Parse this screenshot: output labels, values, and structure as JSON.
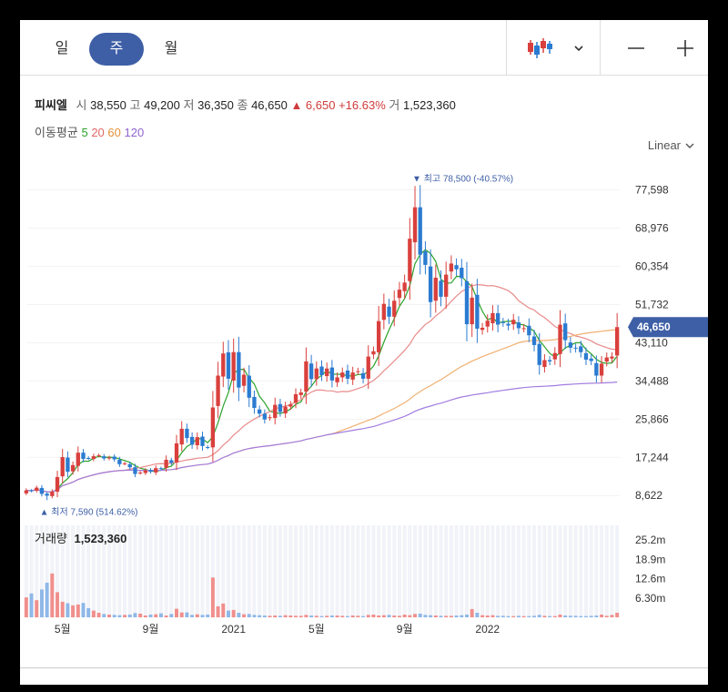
{
  "tabs": [
    {
      "label": "일",
      "active": false
    },
    {
      "label": "주",
      "active": true
    },
    {
      "label": "월",
      "active": false
    }
  ],
  "toolbar": {
    "chart_type_icon": "candlestick-icon",
    "dropdown_icon": "chevron-down-icon",
    "zoom_out_icon": "minus-icon",
    "zoom_in_icon": "plus-icon"
  },
  "stock": {
    "name": "피씨엘",
    "open_label": "시",
    "open": "38,550",
    "high_label": "고",
    "high": "49,200",
    "low_label": "저",
    "low": "36,350",
    "close_label": "종",
    "close": "46,650",
    "change": "▲ 6,650",
    "change_pct": "+16.63%",
    "volume_label": "거",
    "volume": "1,523,360"
  },
  "ma": {
    "label": "이동평균",
    "periods": [
      {
        "label": "5",
        "color": "#2aa22a"
      },
      {
        "label": "20",
        "color": "#e06666"
      },
      {
        "label": "60",
        "color": "#e69138"
      },
      {
        "label": "120",
        "color": "#8e63ce"
      }
    ]
  },
  "scale_label": "Linear",
  "colors": {
    "up": "#d9403d",
    "down": "#2b7bd1",
    "accent": "#3e5fa6"
  },
  "chart_data": {
    "type": "candlestick",
    "y_ticks": [
      "77,598",
      "68,976",
      "60,354",
      "51,732",
      "43,110",
      "34,488",
      "25,866",
      "17,244",
      "8,622"
    ],
    "y_tick_values": [
      77598,
      68976,
      60354,
      51732,
      43110,
      34488,
      25866,
      17244,
      8622
    ],
    "x_ticks": [
      "5월",
      "9월",
      "2021",
      "5월",
      "9월",
      "2022"
    ],
    "x_tick_weeks": [
      7,
      24,
      40,
      56,
      73,
      89
    ],
    "last_price_label": "46,650",
    "high_marker": "▼ 최고 78,500 (-40.57%)",
    "low_marker": "▲ 최저 7,590 (514.62%)",
    "volume_label": "거래량",
    "volume_value": "1,523,360",
    "volume_ticks": [
      "25.2m",
      "18.9m",
      "12.6m",
      "6.30m"
    ],
    "volume_tick_values": [
      25.2,
      18.9,
      12.6,
      6.3
    ],
    "closes": [
      9800,
      9600,
      10400,
      9000,
      8600,
      9500,
      12800,
      17300,
      14000,
      15500,
      18300,
      16900,
      17000,
      17500,
      17700,
      17000,
      17200,
      16800,
      15700,
      15900,
      15000,
      13500,
      13800,
      14300,
      14000,
      14800,
      14700,
      16700,
      16000,
      20400,
      23700,
      21600,
      20100,
      21800,
      19800,
      19500,
      28500,
      35700,
      40700,
      35000,
      41000,
      33000,
      35900,
      30700,
      28400,
      27100,
      25800,
      26300,
      29100,
      27500,
      28700,
      29200,
      31500,
      31900,
      38900,
      34900,
      37300,
      35800,
      37300,
      34600,
      35300,
      36400,
      35000,
      36400,
      36700,
      35000,
      40000,
      41200,
      48000,
      51900,
      49000,
      52600,
      55100,
      56700,
      66600,
      73700,
      63000,
      60700,
      52300,
      57800,
      53500,
      58500,
      61000,
      59700,
      57700,
      47300,
      53300,
      46300,
      46500,
      48100,
      49800,
      47200,
      47700,
      47000,
      48300,
      46400,
      46400,
      44800,
      42600,
      38100,
      39200,
      38900,
      40800,
      47200,
      43700,
      42000,
      41800,
      41000,
      39300,
      39000,
      35700,
      38400,
      39800,
      40000,
      46650
    ],
    "volumes_m": [
      6.5,
      7.8,
      5.6,
      9.1,
      11.3,
      14.3,
      8.2,
      5.1,
      4.6,
      3.9,
      4.2,
      4.7,
      3.0,
      2.2,
      1.5,
      1.1,
      0.9,
      0.8,
      0.7,
      0.8,
      0.9,
      1.4,
      1.2,
      0.6,
      0.9,
      1.0,
      1.3,
      0.6,
      1.1,
      2.8,
      1.6,
      1.6,
      0.8,
      1.0,
      0.8,
      0.9,
      13.0,
      3.6,
      4.5,
      2.2,
      2.4,
      1.5,
      1.0,
      1.1,
      0.8,
      0.7,
      0.6,
      0.5,
      0.6,
      0.5,
      0.7,
      0.6,
      0.5,
      0.5,
      0.8,
      0.6,
      0.5,
      0.4,
      0.5,
      0.6,
      0.6,
      0.5,
      0.4,
      0.6,
      0.5,
      0.4,
      0.8,
      0.9,
      0.6,
      0.7,
      0.8,
      0.6,
      0.5,
      0.9,
      0.7,
      1.1,
      1.2,
      0.8,
      0.7,
      0.6,
      0.5,
      0.5,
      0.5,
      0.6,
      0.7,
      0.9,
      2.7,
      1.5,
      0.7,
      0.6,
      0.7,
      0.5,
      0.5,
      0.4,
      0.4,
      0.5,
      0.4,
      0.4,
      0.5,
      0.8,
      0.5,
      0.4,
      0.4,
      0.9,
      0.6,
      0.5,
      0.5,
      0.4,
      0.4,
      0.5,
      0.6,
      0.9,
      0.5,
      0.8,
      1.5
    ]
  }
}
